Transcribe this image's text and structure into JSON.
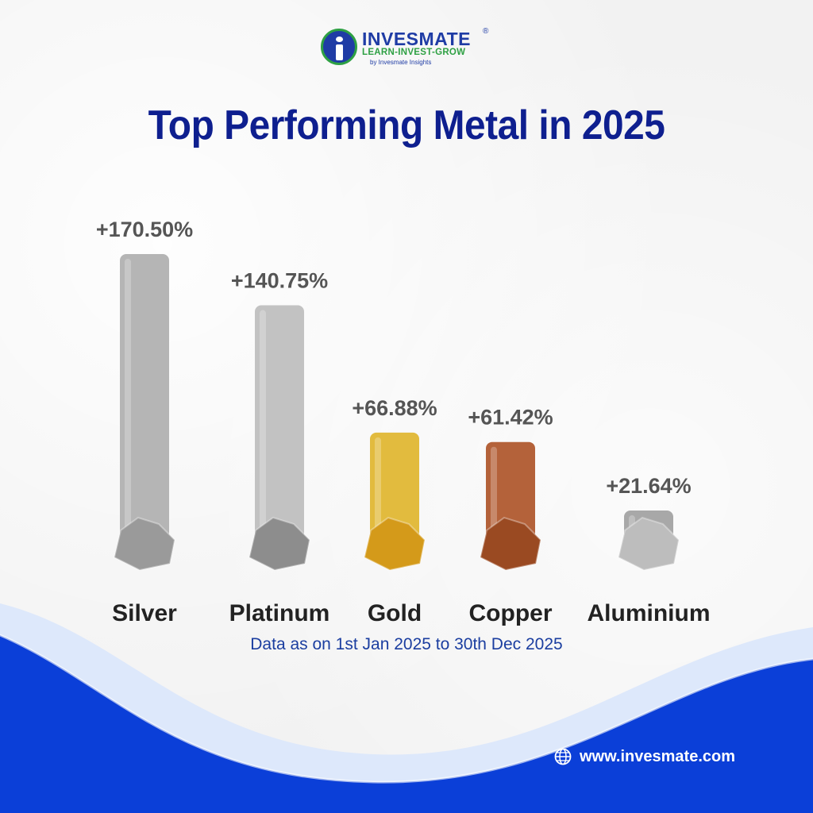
{
  "brand": {
    "name": "INVESMATE",
    "registered": "®",
    "tagline": "LEARN-INVEST-GROW",
    "byline": "by Invesmate Insights"
  },
  "title": "Top Performing Metal in 2025",
  "footnote": "Data as on 1st Jan 2025 to 30th Dec 2025",
  "website": "www.invesmate.com",
  "colors": {
    "title": "#0e1f8f",
    "label": "#222222",
    "value": "#555555",
    "footnote": "#1b3ea0",
    "wave_dark": "#0b3fd8",
    "wave_light": "#dde8fb"
  },
  "chart_data": {
    "type": "bar",
    "title": "Top Performing Metal in 2025",
    "categories": [
      "Silver",
      "Platinum",
      "Gold",
      "Copper",
      "Aluminium"
    ],
    "values": [
      170.5,
      140.75,
      66.88,
      61.42,
      21.64
    ],
    "data_labels": [
      "+170.50%",
      "+140.75%",
      "+66.88%",
      "+61.42%",
      "+21.64%"
    ],
    "bar_colors": [
      "#b5b5b5",
      "#c2c2c2",
      "#e2bb3e",
      "#b4623a",
      "#a8a8a8"
    ],
    "nugget_colors": [
      "#9a9a9a",
      "#8d8d8d",
      "#d49a1a",
      "#9a4a22",
      "#bdbdbd"
    ],
    "unit": "%",
    "xlabel": "",
    "ylabel": "",
    "ylim": [
      0,
      170.5
    ]
  }
}
